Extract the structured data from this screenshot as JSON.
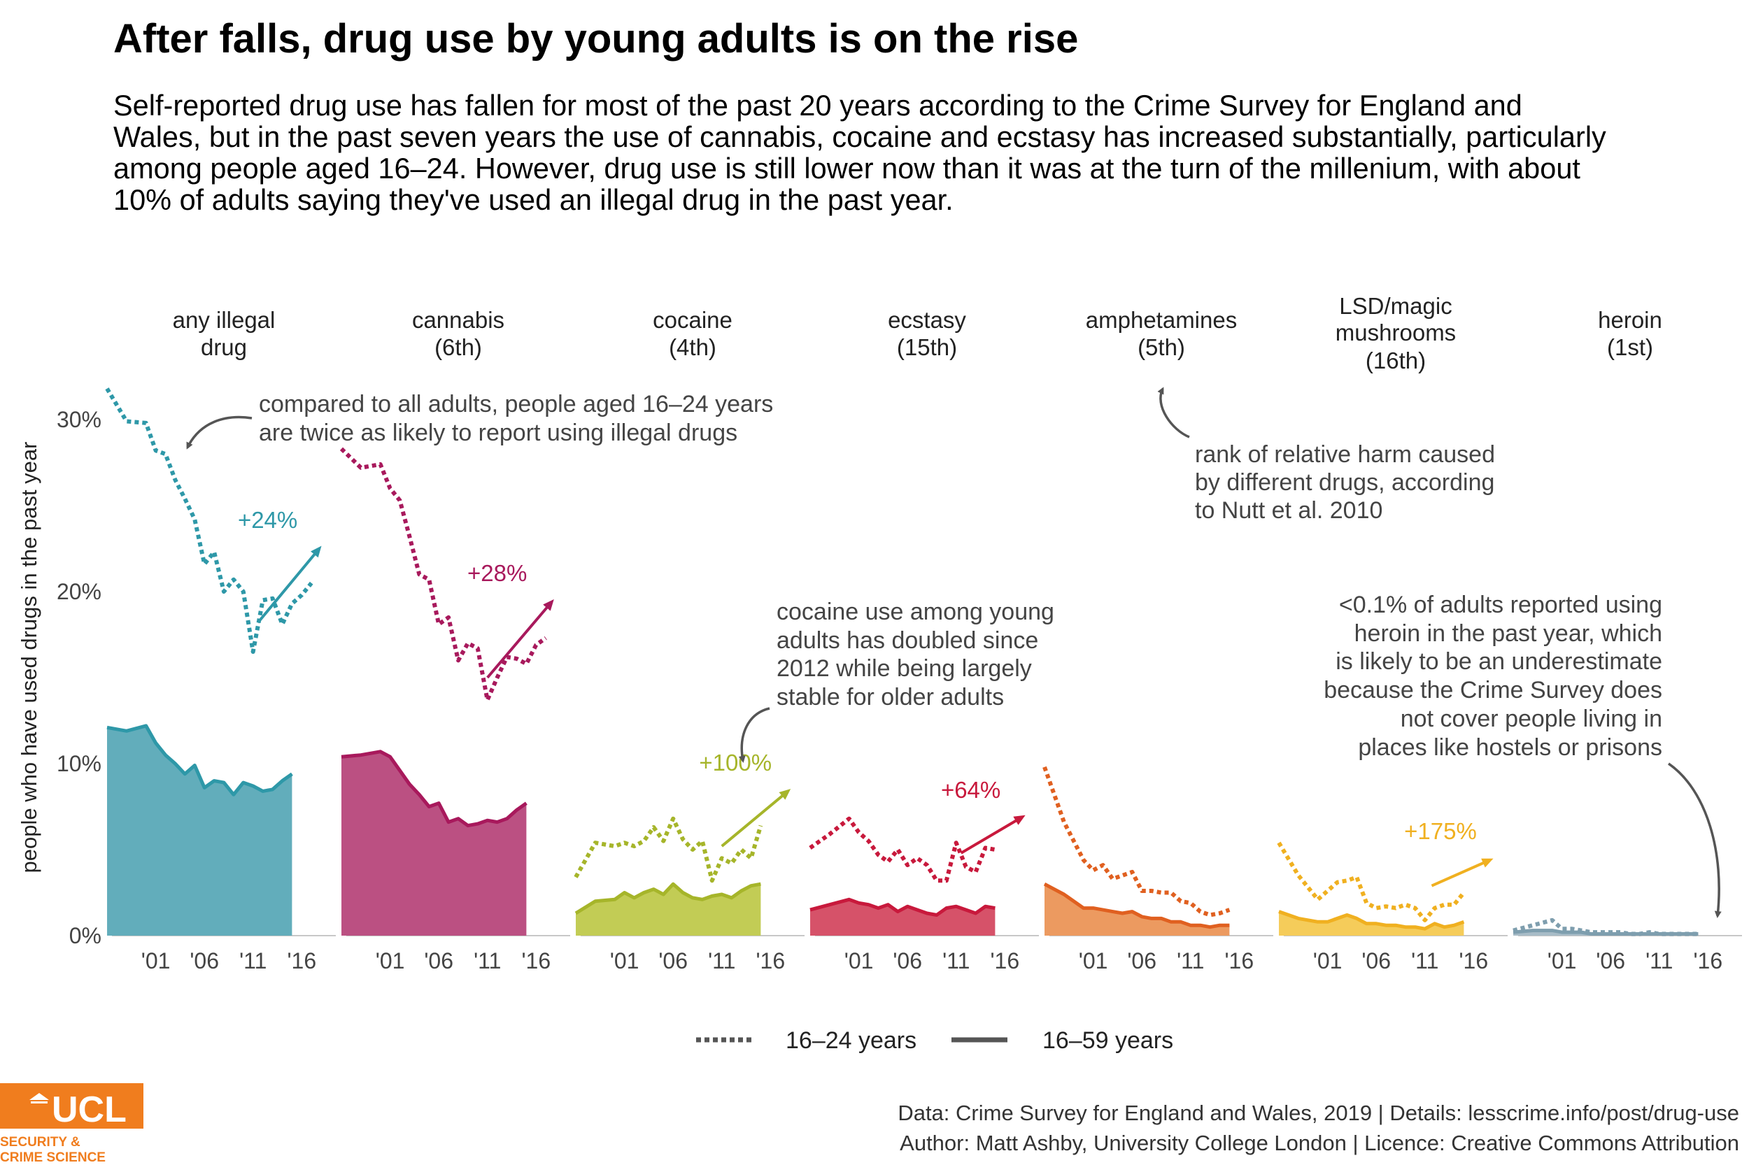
{
  "title": "After falls, drug use by young adults is on the rise",
  "subtitle": "Self-reported drug use has fallen for most of the past 20 years according to the Crime Survey for England and Wales, but in the past seven years the use of cannabis, cocaine and ecstasy has increased substantially, particularly among people aged 16–24. However, drug use is still lower now than it was at the turn of the millenium, with about 10% of adults saying they've used an illegal drug in the past year.",
  "annotations": {
    "young_vs_all": [
      "compared to all adults, people aged 16–24 years",
      "are twice as likely to report using illegal drugs"
    ],
    "harm_rank": [
      "rank of relative harm caused",
      "by different drugs, according",
      "to Nutt et al. 2010"
    ],
    "cocaine": [
      "cocaine use among young",
      "adults has doubled since",
      "2012 while being largely",
      "stable for older adults"
    ],
    "heroin": [
      "<0.1% of adults reported using",
      "heroin in the past year, which",
      "is likely to be an underestimate",
      "because the Crime Survey does",
      "not cover people living in",
      "places like hostels or prisons"
    ]
  },
  "legend": {
    "young": "16–24 years",
    "all": "16–59 years"
  },
  "source": {
    "line1": "Data: Crime Survey for England and Wales, 2019 |  Details: lesscrime.info/post/drug-use",
    "line2": "Author: Matt Ashby, University College London |  Licence: Creative Commons Attribution"
  },
  "logo": {
    "text": "UCL",
    "line1": "SECURITY &",
    "line2": "CRIME SCIENCE",
    "color": "#f07d1e"
  },
  "chart_data": {
    "type": "area",
    "ylabel": "people who have used drugs in the past year",
    "ylim": [
      0,
      33
    ],
    "yticks": [
      0,
      10,
      20,
      30
    ],
    "ytick_labels": [
      "0%",
      "10%",
      "20%",
      "30%"
    ],
    "xlim": [
      1996.5,
      2019.5
    ],
    "xticks": [
      2001,
      2006,
      2011,
      2016
    ],
    "xtick_labels": [
      "'01",
      "'06",
      "'11",
      "'16"
    ],
    "grid": false,
    "legend_position": "bottom",
    "panels": [
      {
        "name": "any illegal drug",
        "label": [
          "any illegal",
          "drug"
        ],
        "color": "#2e98a8",
        "fill": "#62adbb",
        "change": "+24%",
        "young": [
          [
            1996,
            31.8
          ],
          [
            1998,
            29.9
          ],
          [
            2000,
            29.8
          ],
          [
            2001,
            28.2
          ],
          [
            2002,
            28.0
          ],
          [
            2003,
            26.5
          ],
          [
            2004,
            25.4
          ],
          [
            2005,
            24.2
          ],
          [
            2006,
            21.6
          ],
          [
            2007,
            22.3
          ],
          [
            2008,
            20.0
          ],
          [
            2009,
            20.7
          ],
          [
            2010,
            20.0
          ],
          [
            2011,
            16.5
          ],
          [
            2012,
            19.5
          ],
          [
            2013,
            19.6
          ],
          [
            2014,
            18.1
          ],
          [
            2015,
            19.3
          ],
          [
            2016,
            19.8
          ],
          [
            2017,
            20.5
          ]
        ],
        "all": [
          [
            1996,
            12.1
          ],
          [
            1998,
            11.9
          ],
          [
            2000,
            12.2
          ],
          [
            2001,
            11.2
          ],
          [
            2002,
            10.5
          ],
          [
            2003,
            10.0
          ],
          [
            2004,
            9.4
          ],
          [
            2005,
            9.9
          ],
          [
            2006,
            8.6
          ],
          [
            2007,
            9.0
          ],
          [
            2008,
            8.9
          ],
          [
            2009,
            8.2
          ],
          [
            2010,
            8.9
          ],
          [
            2011,
            8.7
          ],
          [
            2012,
            8.4
          ],
          [
            2013,
            8.5
          ],
          [
            2014,
            9.0
          ],
          [
            2015,
            9.4
          ]
        ],
        "trend": [
          [
            2011.5,
            18.2
          ],
          [
            2017.8,
            22.5
          ]
        ]
      },
      {
        "name": "cannabis",
        "label": [
          "cannabis",
          "(6th)"
        ],
        "color": "#a8195c",
        "fill": "#bb5082",
        "change": "+28%",
        "young": [
          [
            1996,
            28.3
          ],
          [
            1998,
            27.2
          ],
          [
            2000,
            27.4
          ],
          [
            2001,
            26.0
          ],
          [
            2002,
            25.3
          ],
          [
            2003,
            23.2
          ],
          [
            2004,
            21.0
          ],
          [
            2005,
            20.7
          ],
          [
            2006,
            18.1
          ],
          [
            2007,
            18.5
          ],
          [
            2008,
            16.0
          ],
          [
            2009,
            17.0
          ],
          [
            2010,
            16.7
          ],
          [
            2011,
            13.7
          ],
          [
            2012,
            15.0
          ],
          [
            2013,
            16.2
          ],
          [
            2014,
            16.1
          ],
          [
            2015,
            15.8
          ],
          [
            2016,
            16.9
          ],
          [
            2017,
            17.3
          ]
        ],
        "all": [
          [
            1996,
            10.4
          ],
          [
            1998,
            10.5
          ],
          [
            2000,
            10.7
          ],
          [
            2001,
            10.4
          ],
          [
            2002,
            9.6
          ],
          [
            2003,
            8.8
          ],
          [
            2004,
            8.2
          ],
          [
            2005,
            7.5
          ],
          [
            2006,
            7.7
          ],
          [
            2007,
            6.6
          ],
          [
            2008,
            6.8
          ],
          [
            2009,
            6.4
          ],
          [
            2010,
            6.5
          ],
          [
            2011,
            6.7
          ],
          [
            2012,
            6.6
          ],
          [
            2013,
            6.8
          ],
          [
            2014,
            7.3
          ],
          [
            2015,
            7.7
          ]
        ],
        "trend": [
          [
            2011.0,
            15.0
          ],
          [
            2017.6,
            19.4
          ]
        ]
      },
      {
        "name": "cocaine",
        "label": [
          "cocaine",
          "(4th)"
        ],
        "color": "#a6b52a",
        "fill": "#c2cc55",
        "change": "+100%",
        "young": [
          [
            1996,
            3.4
          ],
          [
            1998,
            5.4
          ],
          [
            2000,
            5.2
          ],
          [
            2001,
            5.4
          ],
          [
            2002,
            5.2
          ],
          [
            2003,
            5.5
          ],
          [
            2004,
            6.3
          ],
          [
            2005,
            5.5
          ],
          [
            2006,
            6.8
          ],
          [
            2007,
            5.6
          ],
          [
            2008,
            5.0
          ],
          [
            2009,
            5.5
          ],
          [
            2010,
            3.2
          ],
          [
            2011,
            4.5
          ],
          [
            2012,
            4.2
          ],
          [
            2013,
            5.0
          ],
          [
            2014,
            4.5
          ],
          [
            2015,
            6.4
          ]
        ],
        "all": [
          [
            1996,
            1.3
          ],
          [
            1998,
            2.0
          ],
          [
            2000,
            2.1
          ],
          [
            2001,
            2.5
          ],
          [
            2002,
            2.2
          ],
          [
            2003,
            2.5
          ],
          [
            2004,
            2.7
          ],
          [
            2005,
            2.4
          ],
          [
            2006,
            3.0
          ],
          [
            2007,
            2.5
          ],
          [
            2008,
            2.2
          ],
          [
            2009,
            2.1
          ],
          [
            2010,
            2.3
          ],
          [
            2011,
            2.4
          ],
          [
            2012,
            2.2
          ],
          [
            2013,
            2.6
          ],
          [
            2014,
            2.9
          ],
          [
            2015,
            3.0
          ]
        ],
        "trend": [
          [
            2011.0,
            5.2
          ],
          [
            2017.8,
            8.4
          ]
        ]
      },
      {
        "name": "ecstasy",
        "label": [
          "ecstasy",
          "(15th)"
        ],
        "color": "#c8193c",
        "fill": "#d65269",
        "change": "+64%",
        "young": [
          [
            1996,
            5.1
          ],
          [
            1998,
            5.9
          ],
          [
            2000,
            6.8
          ],
          [
            2001,
            6.0
          ],
          [
            2002,
            5.5
          ],
          [
            2003,
            4.7
          ],
          [
            2004,
            4.3
          ],
          [
            2005,
            5.0
          ],
          [
            2006,
            4.1
          ],
          [
            2007,
            4.5
          ],
          [
            2008,
            4.1
          ],
          [
            2009,
            3.2
          ],
          [
            2010,
            3.2
          ],
          [
            2011,
            5.4
          ],
          [
            2012,
            4.0
          ],
          [
            2013,
            3.7
          ],
          [
            2014,
            5.1
          ],
          [
            2015,
            5.0
          ]
        ],
        "all": [
          [
            1996,
            1.5
          ],
          [
            1998,
            1.8
          ],
          [
            2000,
            2.1
          ],
          [
            2001,
            1.9
          ],
          [
            2002,
            1.8
          ],
          [
            2003,
            1.6
          ],
          [
            2004,
            1.8
          ],
          [
            2005,
            1.4
          ],
          [
            2006,
            1.7
          ],
          [
            2007,
            1.5
          ],
          [
            2008,
            1.3
          ],
          [
            2009,
            1.2
          ],
          [
            2010,
            1.6
          ],
          [
            2011,
            1.7
          ],
          [
            2012,
            1.5
          ],
          [
            2013,
            1.3
          ],
          [
            2014,
            1.7
          ],
          [
            2015,
            1.6
          ]
        ],
        "trend": [
          [
            2011.5,
            4.8
          ],
          [
            2017.8,
            6.9
          ]
        ]
      },
      {
        "name": "amphetamines",
        "label": [
          "amphetamines",
          "(5th)"
        ],
        "color": "#e06020",
        "fill": "#ec9a60",
        "change": "",
        "young": [
          [
            1996,
            9.8
          ],
          [
            1998,
            6.6
          ],
          [
            2000,
            4.4
          ],
          [
            2001,
            3.8
          ],
          [
            2002,
            4.1
          ],
          [
            2003,
            3.3
          ],
          [
            2004,
            3.5
          ],
          [
            2005,
            3.7
          ],
          [
            2006,
            2.6
          ],
          [
            2007,
            2.6
          ],
          [
            2008,
            2.5
          ],
          [
            2009,
            2.5
          ],
          [
            2010,
            2.0
          ],
          [
            2011,
            1.9
          ],
          [
            2012,
            1.4
          ],
          [
            2013,
            1.2
          ],
          [
            2014,
            1.3
          ],
          [
            2015,
            1.5
          ]
        ],
        "all": [
          [
            1996,
            3.0
          ],
          [
            1998,
            2.4
          ],
          [
            2000,
            1.6
          ],
          [
            2001,
            1.6
          ],
          [
            2002,
            1.5
          ],
          [
            2003,
            1.4
          ],
          [
            2004,
            1.3
          ],
          [
            2005,
            1.4
          ],
          [
            2006,
            1.1
          ],
          [
            2007,
            1.0
          ],
          [
            2008,
            1.0
          ],
          [
            2009,
            0.8
          ],
          [
            2010,
            0.8
          ],
          [
            2011,
            0.6
          ],
          [
            2012,
            0.6
          ],
          [
            2013,
            0.5
          ],
          [
            2014,
            0.6
          ],
          [
            2015,
            0.6
          ]
        ]
      },
      {
        "name": "LSD/magic mushrooms",
        "label": [
          "LSD/magic",
          "mushrooms",
          "(16th)"
        ],
        "color": "#f0b020",
        "fill": "#f5cc5a",
        "change": "+175%",
        "young": [
          [
            1996,
            5.4
          ],
          [
            1998,
            3.5
          ],
          [
            2000,
            2.1
          ],
          [
            2001,
            2.6
          ],
          [
            2002,
            3.1
          ],
          [
            2003,
            3.2
          ],
          [
            2004,
            3.4
          ],
          [
            2005,
            1.9
          ],
          [
            2006,
            1.6
          ],
          [
            2007,
            1.7
          ],
          [
            2008,
            1.6
          ],
          [
            2009,
            1.8
          ],
          [
            2010,
            1.6
          ],
          [
            2011,
            0.9
          ],
          [
            2012,
            1.6
          ],
          [
            2013,
            1.8
          ],
          [
            2014,
            1.8
          ],
          [
            2015,
            2.5
          ]
        ],
        "all": [
          [
            1996,
            1.4
          ],
          [
            1998,
            1.0
          ],
          [
            2000,
            0.8
          ],
          [
            2001,
            0.8
          ],
          [
            2002,
            1.0
          ],
          [
            2003,
            1.2
          ],
          [
            2004,
            1.0
          ],
          [
            2005,
            0.7
          ],
          [
            2006,
            0.7
          ],
          [
            2007,
            0.6
          ],
          [
            2008,
            0.6
          ],
          [
            2009,
            0.5
          ],
          [
            2010,
            0.5
          ],
          [
            2011,
            0.4
          ],
          [
            2012,
            0.7
          ],
          [
            2013,
            0.5
          ],
          [
            2014,
            0.6
          ],
          [
            2015,
            0.8
          ]
        ],
        "trend": [
          [
            2011.7,
            2.9
          ],
          [
            2017.7,
            4.4
          ]
        ]
      },
      {
        "name": "heroin",
        "label": [
          "heroin",
          "(1st)"
        ],
        "color": "#7e9eae",
        "fill": "#a8bcc7",
        "change": "",
        "young": [
          [
            1996,
            0.3
          ],
          [
            1998,
            0.6
          ],
          [
            2000,
            0.9
          ],
          [
            2001,
            0.4
          ],
          [
            2002,
            0.4
          ],
          [
            2003,
            0.3
          ],
          [
            2004,
            0.2
          ],
          [
            2005,
            0.2
          ],
          [
            2006,
            0.2
          ],
          [
            2007,
            0.2
          ],
          [
            2008,
            0.1
          ],
          [
            2009,
            0.1
          ],
          [
            2010,
            0.2
          ],
          [
            2011,
            0.1
          ],
          [
            2012,
            0.1
          ],
          [
            2013,
            0.1
          ],
          [
            2014,
            0.1
          ],
          [
            2015,
            0.1
          ]
        ],
        "all": [
          [
            1996,
            0.2
          ],
          [
            1998,
            0.3
          ],
          [
            2000,
            0.3
          ],
          [
            2001,
            0.2
          ],
          [
            2002,
            0.2
          ],
          [
            2003,
            0.2
          ],
          [
            2004,
            0.1
          ],
          [
            2005,
            0.1
          ],
          [
            2006,
            0.1
          ],
          [
            2007,
            0.1
          ],
          [
            2008,
            0.1
          ],
          [
            2009,
            0.1
          ],
          [
            2010,
            0.1
          ],
          [
            2011,
            0.1
          ],
          [
            2012,
            0.1
          ],
          [
            2013,
            0.1
          ],
          [
            2014,
            0.1
          ],
          [
            2015,
            0.1
          ]
        ]
      }
    ]
  }
}
